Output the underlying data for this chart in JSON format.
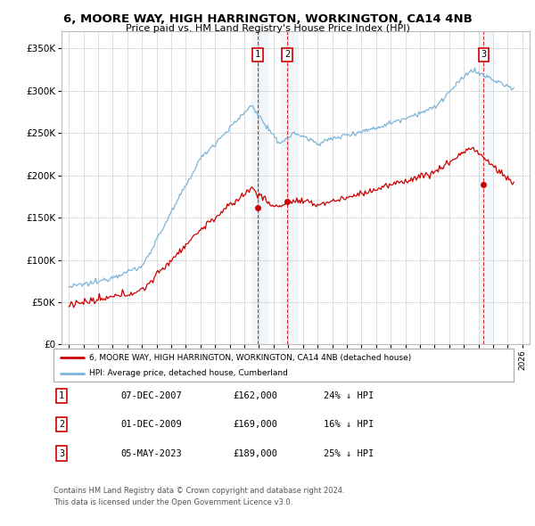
{
  "title": "6, MOORE WAY, HIGH HARRINGTON, WORKINGTON, CA14 4NB",
  "subtitle": "Price paid vs. HM Land Registry's House Price Index (HPI)",
  "legend_line1": "6, MOORE WAY, HIGH HARRINGTON, WORKINGTON, CA14 4NB (detached house)",
  "legend_line2": "HPI: Average price, detached house, Cumberland",
  "footnote1": "Contains HM Land Registry data © Crown copyright and database right 2024.",
  "footnote2": "This data is licensed under the Open Government Licence v3.0.",
  "transactions": [
    {
      "num": "1",
      "date": "07-DEC-2007",
      "price": "£162,000",
      "pct": "24% ↓ HPI",
      "year": 2007.92,
      "price_val": 162000
    },
    {
      "num": "2",
      "date": "01-DEC-2009",
      "price": "£169,000",
      "pct": "16% ↓ HPI",
      "year": 2009.92,
      "price_val": 169000
    },
    {
      "num": "3",
      "date": "05-MAY-2023",
      "price": "£189,000",
      "pct": "25% ↓ HPI",
      "year": 2023.35,
      "price_val": 189000
    }
  ],
  "hpi_color": "#7ab5d8",
  "price_color": "#cc0000",
  "shading_color": "#d0e4f0",
  "ylim": [
    0,
    370000
  ],
  "yticks": [
    0,
    50000,
    100000,
    150000,
    200000,
    250000,
    300000,
    350000
  ],
  "xlim_start": 1994.5,
  "xlim_end": 2026.5
}
